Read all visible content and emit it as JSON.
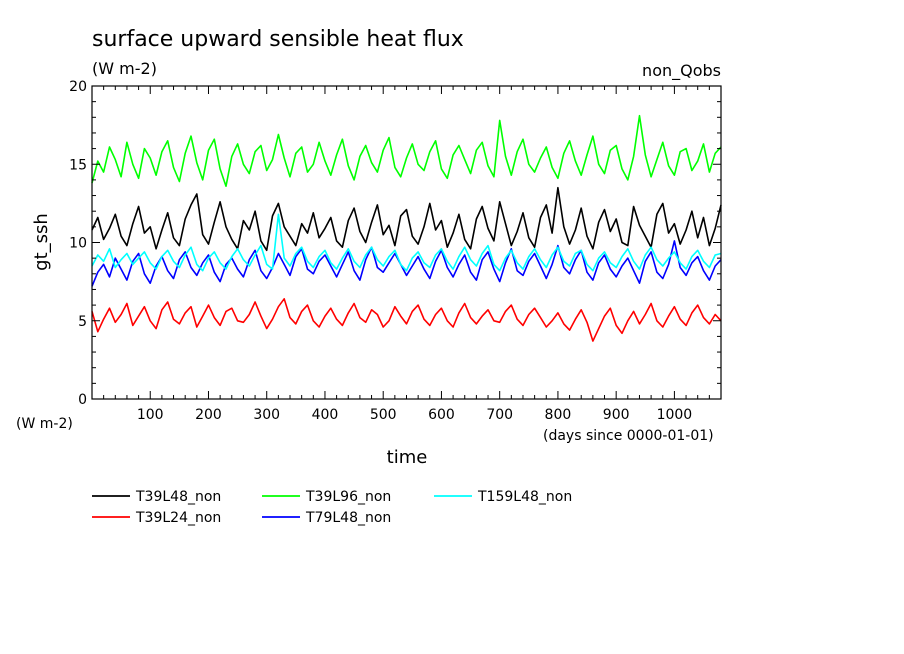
{
  "chart_data": {
    "type": "line",
    "title": "surface upward sensible heat flux",
    "units": "(W m-2)",
    "experiment": "non_Qobs",
    "xlabel": "time",
    "xunits": "(days since 0000-01-01)",
    "ylabel": "gt_ssh",
    "yunits": "(W m-2)",
    "xlim": [
      0,
      1080
    ],
    "ylim": [
      0,
      20
    ],
    "xticks": [
      100,
      200,
      300,
      400,
      500,
      600,
      700,
      800,
      900,
      1000
    ],
    "yticks": [
      0,
      5,
      10,
      15,
      20
    ],
    "grid": false,
    "legend_position": "bottom",
    "sampling": "one value every 10 days (approximate, read from noisy daily traces)",
    "x": [
      0,
      10,
      20,
      30,
      40,
      50,
      60,
      70,
      80,
      90,
      100,
      110,
      120,
      130,
      140,
      150,
      160,
      170,
      180,
      190,
      200,
      210,
      220,
      230,
      240,
      250,
      260,
      270,
      280,
      290,
      300,
      310,
      320,
      330,
      340,
      350,
      360,
      370,
      380,
      390,
      400,
      410,
      420,
      430,
      440,
      450,
      460,
      470,
      480,
      490,
      500,
      510,
      520,
      530,
      540,
      550,
      560,
      570,
      580,
      590,
      600,
      610,
      620,
      630,
      640,
      650,
      660,
      670,
      680,
      690,
      700,
      710,
      720,
      730,
      740,
      750,
      760,
      770,
      780,
      790,
      800,
      810,
      820,
      830,
      840,
      850,
      860,
      870,
      880,
      890,
      900,
      910,
      920,
      930,
      940,
      950,
      960,
      970,
      980,
      990,
      1000,
      1010,
      1020,
      1030,
      1040,
      1050,
      1060,
      1070,
      1080
    ],
    "series": [
      {
        "name": "T39L48_non",
        "color": "#000000",
        "values": [
          10.8,
          11.6,
          10.2,
          10.9,
          11.8,
          10.4,
          9.8,
          11.2,
          12.3,
          10.6,
          11.0,
          9.6,
          10.8,
          11.9,
          10.3,
          9.8,
          11.5,
          12.4,
          13.1,
          10.5,
          9.9,
          11.3,
          12.6,
          11.0,
          10.2,
          9.6,
          11.4,
          10.8,
          12.0,
          10.1,
          9.5,
          11.7,
          12.5,
          11.0,
          10.4,
          9.8,
          11.2,
          10.6,
          11.9,
          10.3,
          10.9,
          11.6,
          10.1,
          9.7,
          11.4,
          12.2,
          10.7,
          10.0,
          11.3,
          12.4,
          10.5,
          11.1,
          9.8,
          11.7,
          12.1,
          10.4,
          9.9,
          11.0,
          12.5,
          10.8,
          11.4,
          9.7,
          10.6,
          11.8,
          10.2,
          9.6,
          11.5,
          12.3,
          10.9,
          10.1,
          12.6,
          11.2,
          9.8,
          10.7,
          11.9,
          10.3,
          9.7,
          11.6,
          12.4,
          10.6,
          13.5,
          11.0,
          9.9,
          10.8,
          12.2,
          10.4,
          9.6,
          11.3,
          12.1,
          10.7,
          11.5,
          10.0,
          9.8,
          12.3,
          11.1,
          10.4,
          9.7,
          11.8,
          12.5,
          10.6,
          11.2,
          9.9,
          10.8,
          12.0,
          10.3,
          11.6,
          9.8,
          10.9,
          12.4
        ]
      },
      {
        "name": "T39L24_non",
        "color": "#ff0000",
        "values": [
          5.6,
          4.3,
          5.1,
          5.8,
          4.9,
          5.4,
          6.1,
          4.7,
          5.3,
          5.9,
          5.0,
          4.5,
          5.7,
          6.2,
          5.1,
          4.8,
          5.5,
          5.9,
          4.6,
          5.3,
          6.0,
          5.2,
          4.7,
          5.6,
          5.8,
          5.0,
          4.9,
          5.4,
          6.2,
          5.3,
          4.5,
          5.1,
          5.9,
          6.4,
          5.2,
          4.8,
          5.6,
          6.0,
          5.0,
          4.6,
          5.3,
          5.8,
          5.1,
          4.7,
          5.5,
          6.1,
          5.2,
          4.9,
          5.7,
          5.4,
          4.6,
          5.0,
          5.9,
          5.3,
          4.8,
          5.6,
          6.0,
          5.1,
          4.7,
          5.4,
          5.8,
          5.0,
          4.6,
          5.5,
          6.1,
          5.2,
          4.8,
          5.3,
          5.7,
          5.0,
          4.9,
          5.6,
          6.0,
          5.1,
          4.7,
          5.4,
          5.8,
          5.2,
          4.6,
          5.0,
          5.5,
          4.8,
          4.4,
          5.1,
          5.7,
          4.9,
          3.7,
          4.5,
          5.3,
          5.8,
          4.7,
          4.2,
          5.0,
          5.6,
          4.8,
          5.4,
          6.1,
          5.0,
          4.6,
          5.3,
          5.9,
          5.1,
          4.7,
          5.5,
          6.0,
          5.2,
          4.8,
          5.4,
          5.0
        ]
      },
      {
        "name": "T39L96_non",
        "color": "#00ff00",
        "values": [
          13.8,
          15.2,
          14.5,
          16.1,
          15.3,
          14.2,
          16.4,
          15.0,
          14.1,
          16.0,
          15.4,
          14.3,
          15.8,
          16.5,
          14.8,
          13.9,
          15.7,
          16.8,
          15.1,
          14.0,
          15.9,
          16.6,
          14.7,
          13.6,
          15.5,
          16.3,
          15.0,
          14.4,
          15.8,
          16.2,
          14.6,
          15.3,
          16.9,
          15.4,
          14.2,
          15.7,
          16.1,
          14.5,
          15.0,
          16.4,
          15.2,
          14.3,
          15.6,
          16.6,
          14.9,
          14.0,
          15.5,
          16.2,
          15.1,
          14.5,
          15.9,
          16.7,
          14.8,
          14.2,
          15.4,
          16.3,
          15.0,
          14.6,
          15.8,
          16.5,
          14.7,
          14.1,
          15.6,
          16.2,
          15.3,
          14.4,
          15.9,
          16.4,
          14.9,
          14.2,
          17.8,
          15.5,
          14.3,
          15.8,
          16.6,
          15.0,
          14.5,
          15.4,
          16.1,
          14.8,
          14.1,
          15.7,
          16.5,
          15.2,
          14.3,
          15.6,
          16.8,
          15.0,
          14.4,
          15.9,
          16.2,
          14.7,
          14.0,
          15.5,
          18.1,
          15.6,
          14.2,
          15.3,
          16.4,
          14.9,
          14.3,
          15.8,
          16.0,
          14.6,
          15.2,
          16.3,
          14.5,
          15.7,
          16.1
        ]
      },
      {
        "name": "T79L48_non",
        "color": "#0000ff",
        "values": [
          7.2,
          8.1,
          8.6,
          7.8,
          9.0,
          8.3,
          7.6,
          8.8,
          9.3,
          8.0,
          7.4,
          8.5,
          9.1,
          8.2,
          7.7,
          8.9,
          9.4,
          8.4,
          7.9,
          8.7,
          9.2,
          8.1,
          7.5,
          8.6,
          9.0,
          8.3,
          7.8,
          8.9,
          9.5,
          8.2,
          7.7,
          8.4,
          9.3,
          8.6,
          7.9,
          9.1,
          9.6,
          8.3,
          8.0,
          8.8,
          9.2,
          8.5,
          7.8,
          8.6,
          9.4,
          8.2,
          7.6,
          8.9,
          9.7,
          8.4,
          8.1,
          8.7,
          9.3,
          8.6,
          7.9,
          8.5,
          9.1,
          8.3,
          7.7,
          8.8,
          9.5,
          8.4,
          7.8,
          8.6,
          9.2,
          8.1,
          7.6,
          8.9,
          9.4,
          8.3,
          7.5,
          8.7,
          9.6,
          8.2,
          7.9,
          8.8,
          9.3,
          8.5,
          7.7,
          8.6,
          9.8,
          8.4,
          8.0,
          8.9,
          9.5,
          8.1,
          7.6,
          8.7,
          9.2,
          8.3,
          7.8,
          8.5,
          9.0,
          8.2,
          7.4,
          8.8,
          9.4,
          8.1,
          7.7,
          8.6,
          10.1,
          8.4,
          7.9,
          8.7,
          9.1,
          8.2,
          7.6,
          8.5,
          8.9
        ]
      },
      {
        "name": "T159L48_non",
        "color": "#00ffff",
        "values": [
          8.5,
          9.2,
          8.8,
          9.6,
          8.4,
          8.9,
          9.3,
          8.6,
          9.0,
          9.4,
          8.7,
          8.3,
          9.1,
          9.5,
          8.8,
          8.4,
          9.2,
          9.7,
          8.6,
          8.2,
          9.0,
          9.4,
          8.7,
          8.3,
          9.1,
          9.6,
          8.9,
          8.5,
          9.2,
          9.8,
          8.6,
          8.3,
          11.8,
          9.0,
          8.5,
          9.3,
          9.7,
          8.8,
          8.4,
          9.1,
          9.5,
          8.7,
          8.3,
          9.0,
          9.6,
          8.8,
          8.4,
          9.2,
          9.7,
          8.9,
          8.5,
          9.1,
          9.5,
          8.6,
          8.2,
          9.0,
          9.4,
          8.7,
          8.4,
          9.2,
          9.6,
          8.8,
          8.3,
          9.1,
          9.7,
          8.9,
          8.5,
          9.3,
          9.8,
          8.6,
          8.2,
          9.0,
          9.5,
          8.7,
          8.3,
          9.1,
          9.6,
          8.9,
          8.4,
          9.2,
          9.7,
          8.8,
          8.5,
          9.3,
          9.5,
          8.6,
          8.2,
          9.0,
          9.4,
          8.7,
          8.4,
          9.1,
          9.6,
          8.8,
          8.3,
          9.2,
          9.7,
          8.9,
          8.5,
          9.0,
          9.4,
          8.7,
          8.3,
          9.1,
          9.5,
          8.8,
          8.4,
          9.2,
          9.3
        ]
      }
    ]
  }
}
